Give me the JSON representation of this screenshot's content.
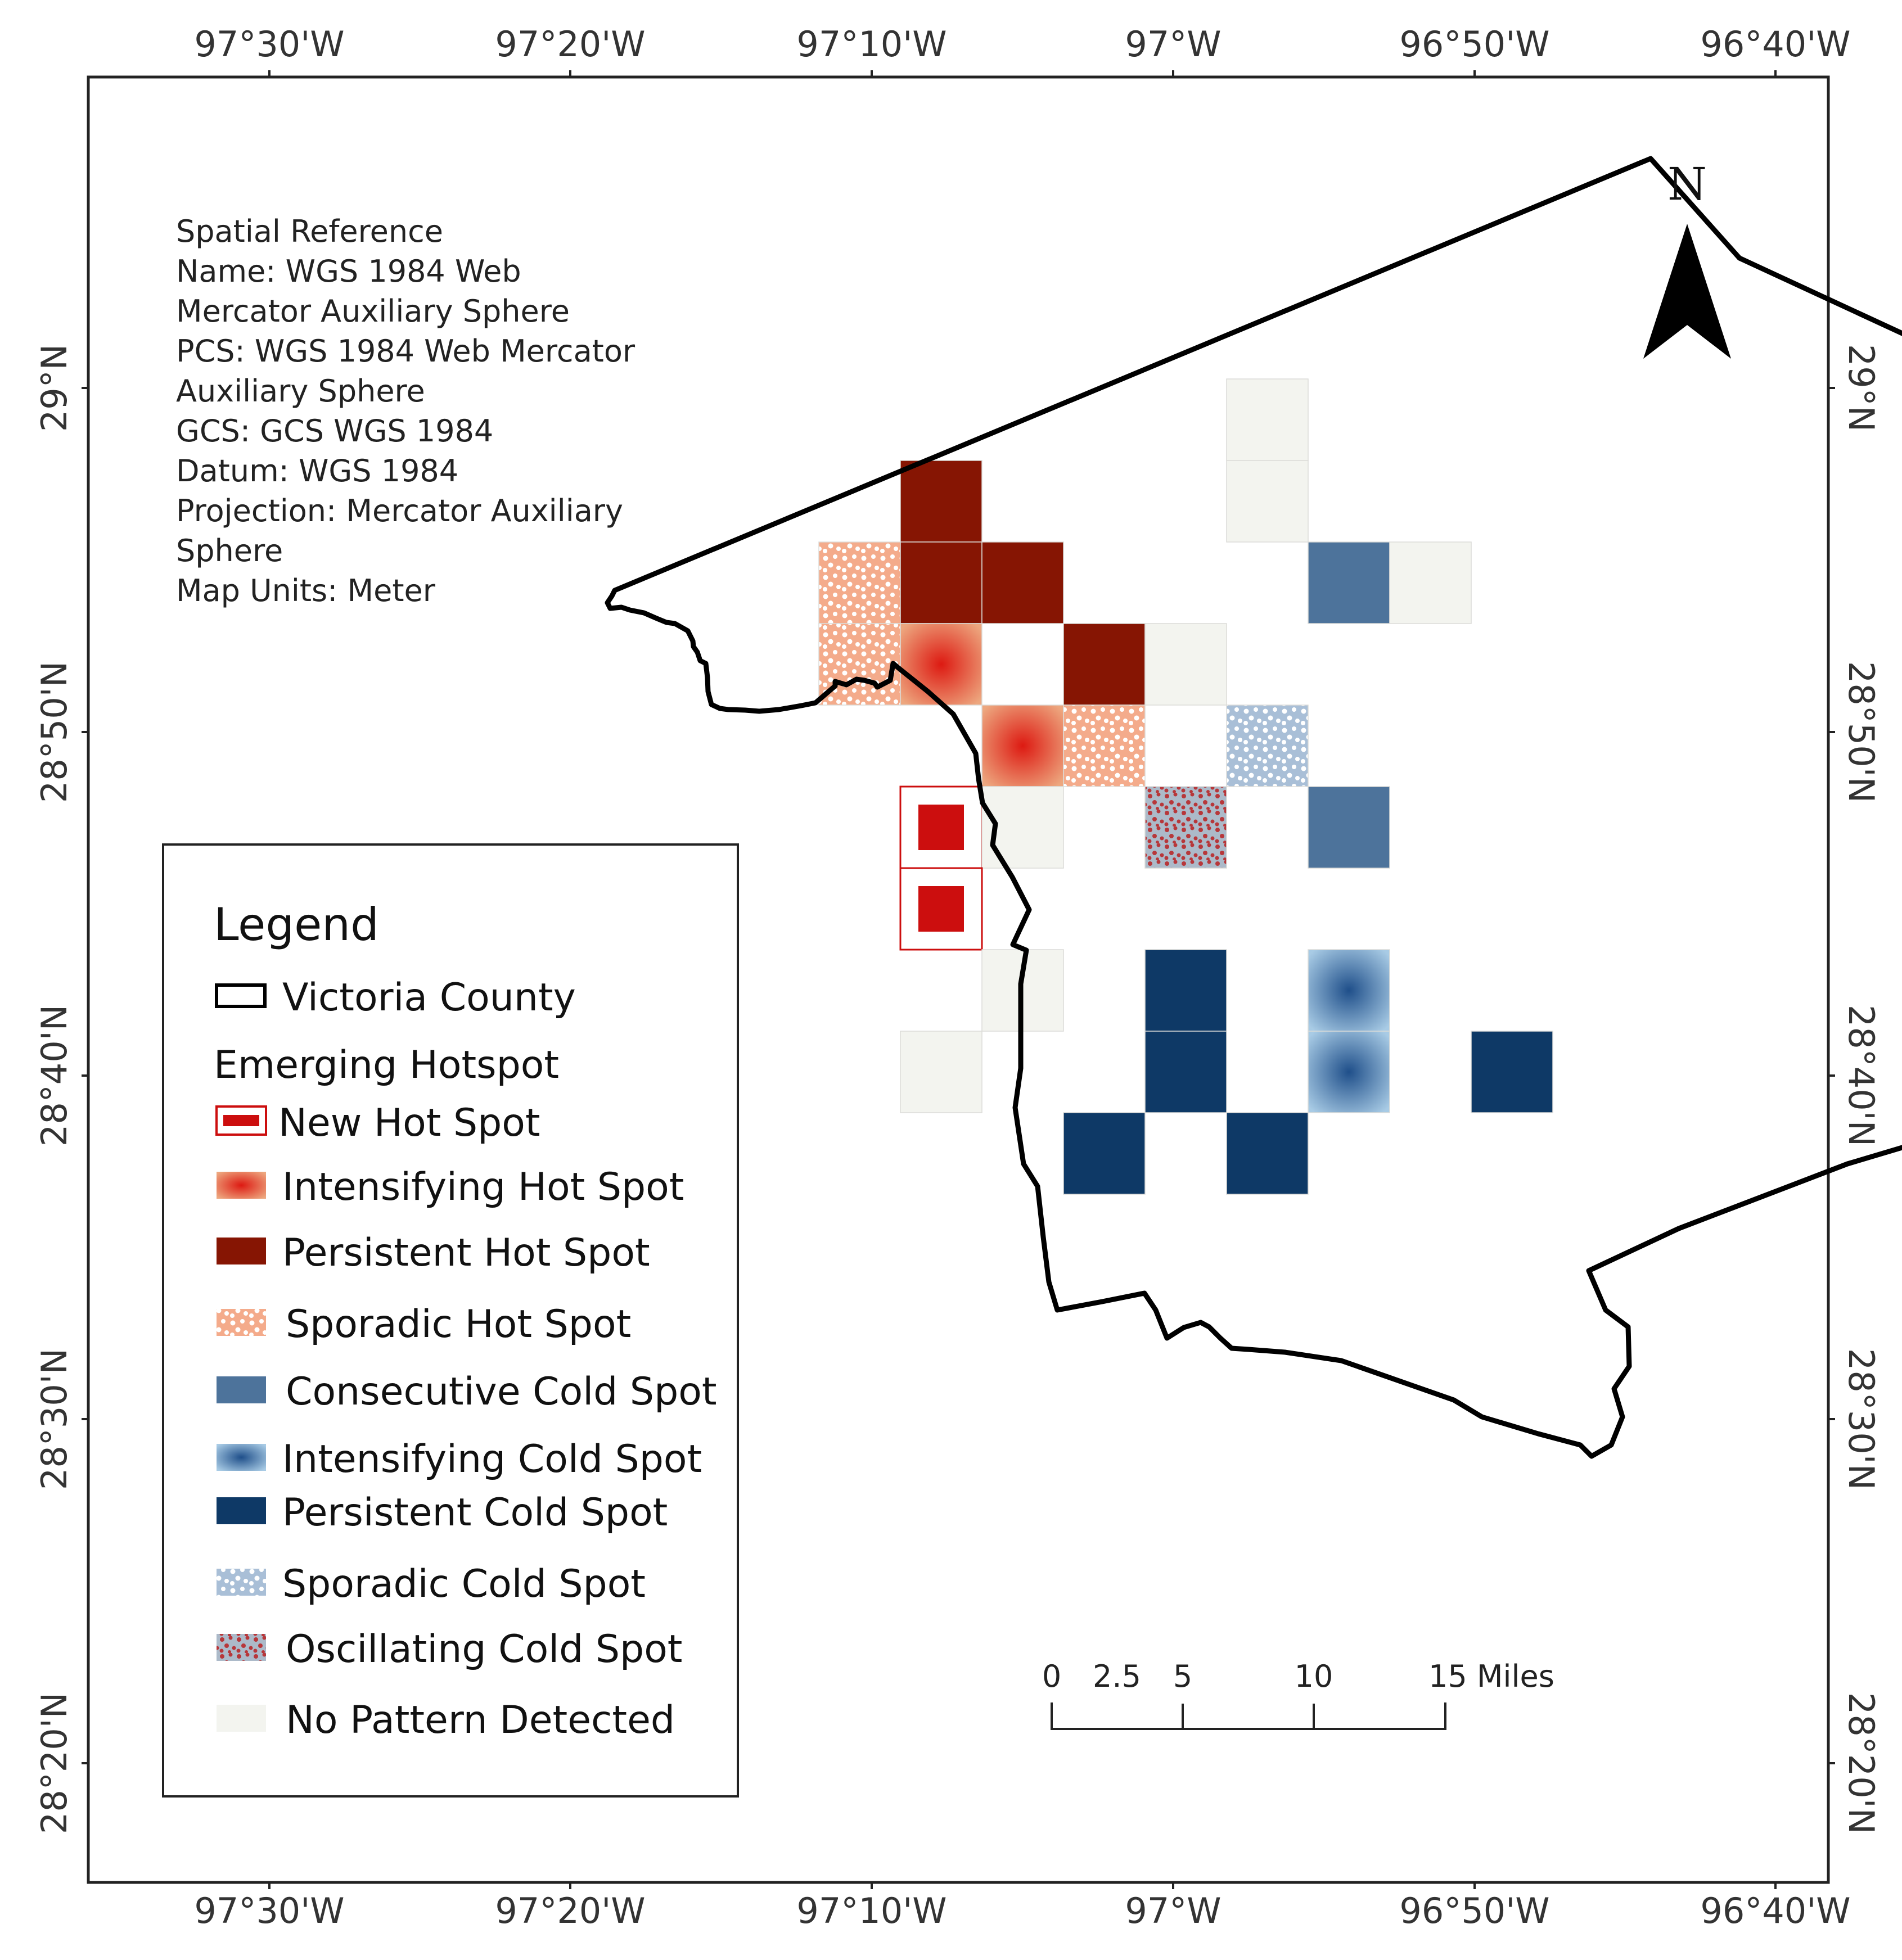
{
  "colors": {
    "new_hot": "#cc0e0e",
    "intensifying_hot_center": "#dd1a12",
    "intensifying_hot_edge": "#eda77f",
    "persistent_hot": "#861503",
    "sporadic_hot": "#f4ab8b",
    "consecutive_cold": "#4d739b",
    "intensifying_cold_center": "#1f4f8a",
    "intensifying_cold_edge": "#a8cbe5",
    "persistent_cold": "#0e3966",
    "sporadic_cold": "#a9bfd7",
    "oscillating_cold": "#acbac9",
    "oscillating_dot": "#b7373a",
    "no_pattern": "#f3f4ef"
  },
  "axes": {
    "longitude_labels": [
      "97°30'W",
      "97°20'W",
      "97°10'W",
      "97°W",
      "96°50'W",
      "96°40'W"
    ],
    "latitude_labels": [
      "29°N",
      "28°50'N",
      "28°40'N",
      "28°30'N",
      "28°20'N"
    ]
  },
  "spatial_reference": {
    "lines": [
      "Spatial Reference",
      "Name: WGS 1984 Web",
      "Mercator Auxiliary Sphere",
      "PCS: WGS 1984 Web Mercator",
      "Auxiliary Sphere",
      "GCS: GCS WGS 1984",
      "Datum: WGS 1984",
      "Projection: Mercator Auxiliary",
      "Sphere",
      "Map Units: Meter"
    ]
  },
  "north_arrow": {
    "label": "N"
  },
  "legend": {
    "title": "Legend",
    "county_label": "Victoria  County",
    "subtitle": "Emerging Hotspot",
    "items": [
      {
        "key": "new_hot",
        "label": "New Hot Spot"
      },
      {
        "key": "intensifying_hot",
        "label": "Intensifying Hot Spot"
      },
      {
        "key": "persistent_hot",
        "label": "Persistent Hot Spot"
      },
      {
        "key": "sporadic_hot",
        "label": "Sporadic Hot Spot"
      },
      {
        "key": "consecutive_cold",
        "label": "Consecutive Cold Spot"
      },
      {
        "key": "intensifying_cold",
        "label": "Intensifying Cold Spot"
      },
      {
        "key": "persistent_cold",
        "label": "Persistent Cold Spot"
      },
      {
        "key": "sporadic_cold",
        "label": "Sporadic Cold Spot"
      },
      {
        "key": "oscillating_cold",
        "label": "Oscillating Cold Spot"
      },
      {
        "key": "no_pattern",
        "label": "No Pattern Detected"
      }
    ]
  },
  "scale_bar": {
    "labels": [
      "0",
      "2.5",
      "5",
      "10",
      "15 Miles"
    ]
  },
  "grid_cells": [
    {
      "col": 5,
      "row": 1,
      "type": "no_pattern"
    },
    {
      "col": 1,
      "row": 2,
      "type": "persistent_hot"
    },
    {
      "col": 5,
      "row": 2,
      "type": "no_pattern"
    },
    {
      "col": 0,
      "row": 3,
      "type": "sporadic_hot"
    },
    {
      "col": 1,
      "row": 3,
      "type": "persistent_hot"
    },
    {
      "col": 2,
      "row": 3,
      "type": "persistent_hot"
    },
    {
      "col": 6,
      "row": 3,
      "type": "consecutive_cold"
    },
    {
      "col": 7,
      "row": 3,
      "type": "no_pattern"
    },
    {
      "col": 0,
      "row": 4,
      "type": "sporadic_hot"
    },
    {
      "col": 1,
      "row": 4,
      "type": "intensifying_hot"
    },
    {
      "col": 3,
      "row": 4,
      "type": "persistent_hot"
    },
    {
      "col": 4,
      "row": 4,
      "type": "no_pattern"
    },
    {
      "col": 2,
      "row": 5,
      "type": "intensifying_hot"
    },
    {
      "col": 3,
      "row": 5,
      "type": "sporadic_hot"
    },
    {
      "col": 5,
      "row": 5,
      "type": "sporadic_cold"
    },
    {
      "col": 1,
      "row": 6,
      "type": "new_hot"
    },
    {
      "col": 2,
      "row": 6,
      "type": "no_pattern"
    },
    {
      "col": 4,
      "row": 6,
      "type": "oscillating_cold"
    },
    {
      "col": 6,
      "row": 6,
      "type": "consecutive_cold"
    },
    {
      "col": 1,
      "row": 7,
      "type": "new_hot"
    },
    {
      "col": 2,
      "row": 8,
      "type": "no_pattern"
    },
    {
      "col": 4,
      "row": 8,
      "type": "persistent_cold"
    },
    {
      "col": 6,
      "row": 8,
      "type": "intensifying_cold"
    },
    {
      "col": 1,
      "row": 9,
      "type": "no_pattern"
    },
    {
      "col": 4,
      "row": 9,
      "type": "persistent_cold"
    },
    {
      "col": 6,
      "row": 9,
      "type": "intensifying_cold"
    },
    {
      "col": 8,
      "row": 9,
      "type": "persistent_cold"
    },
    {
      "col": 3,
      "row": 10,
      "type": "persistent_cold"
    },
    {
      "col": 5,
      "row": 10,
      "type": "persistent_cold"
    }
  ]
}
